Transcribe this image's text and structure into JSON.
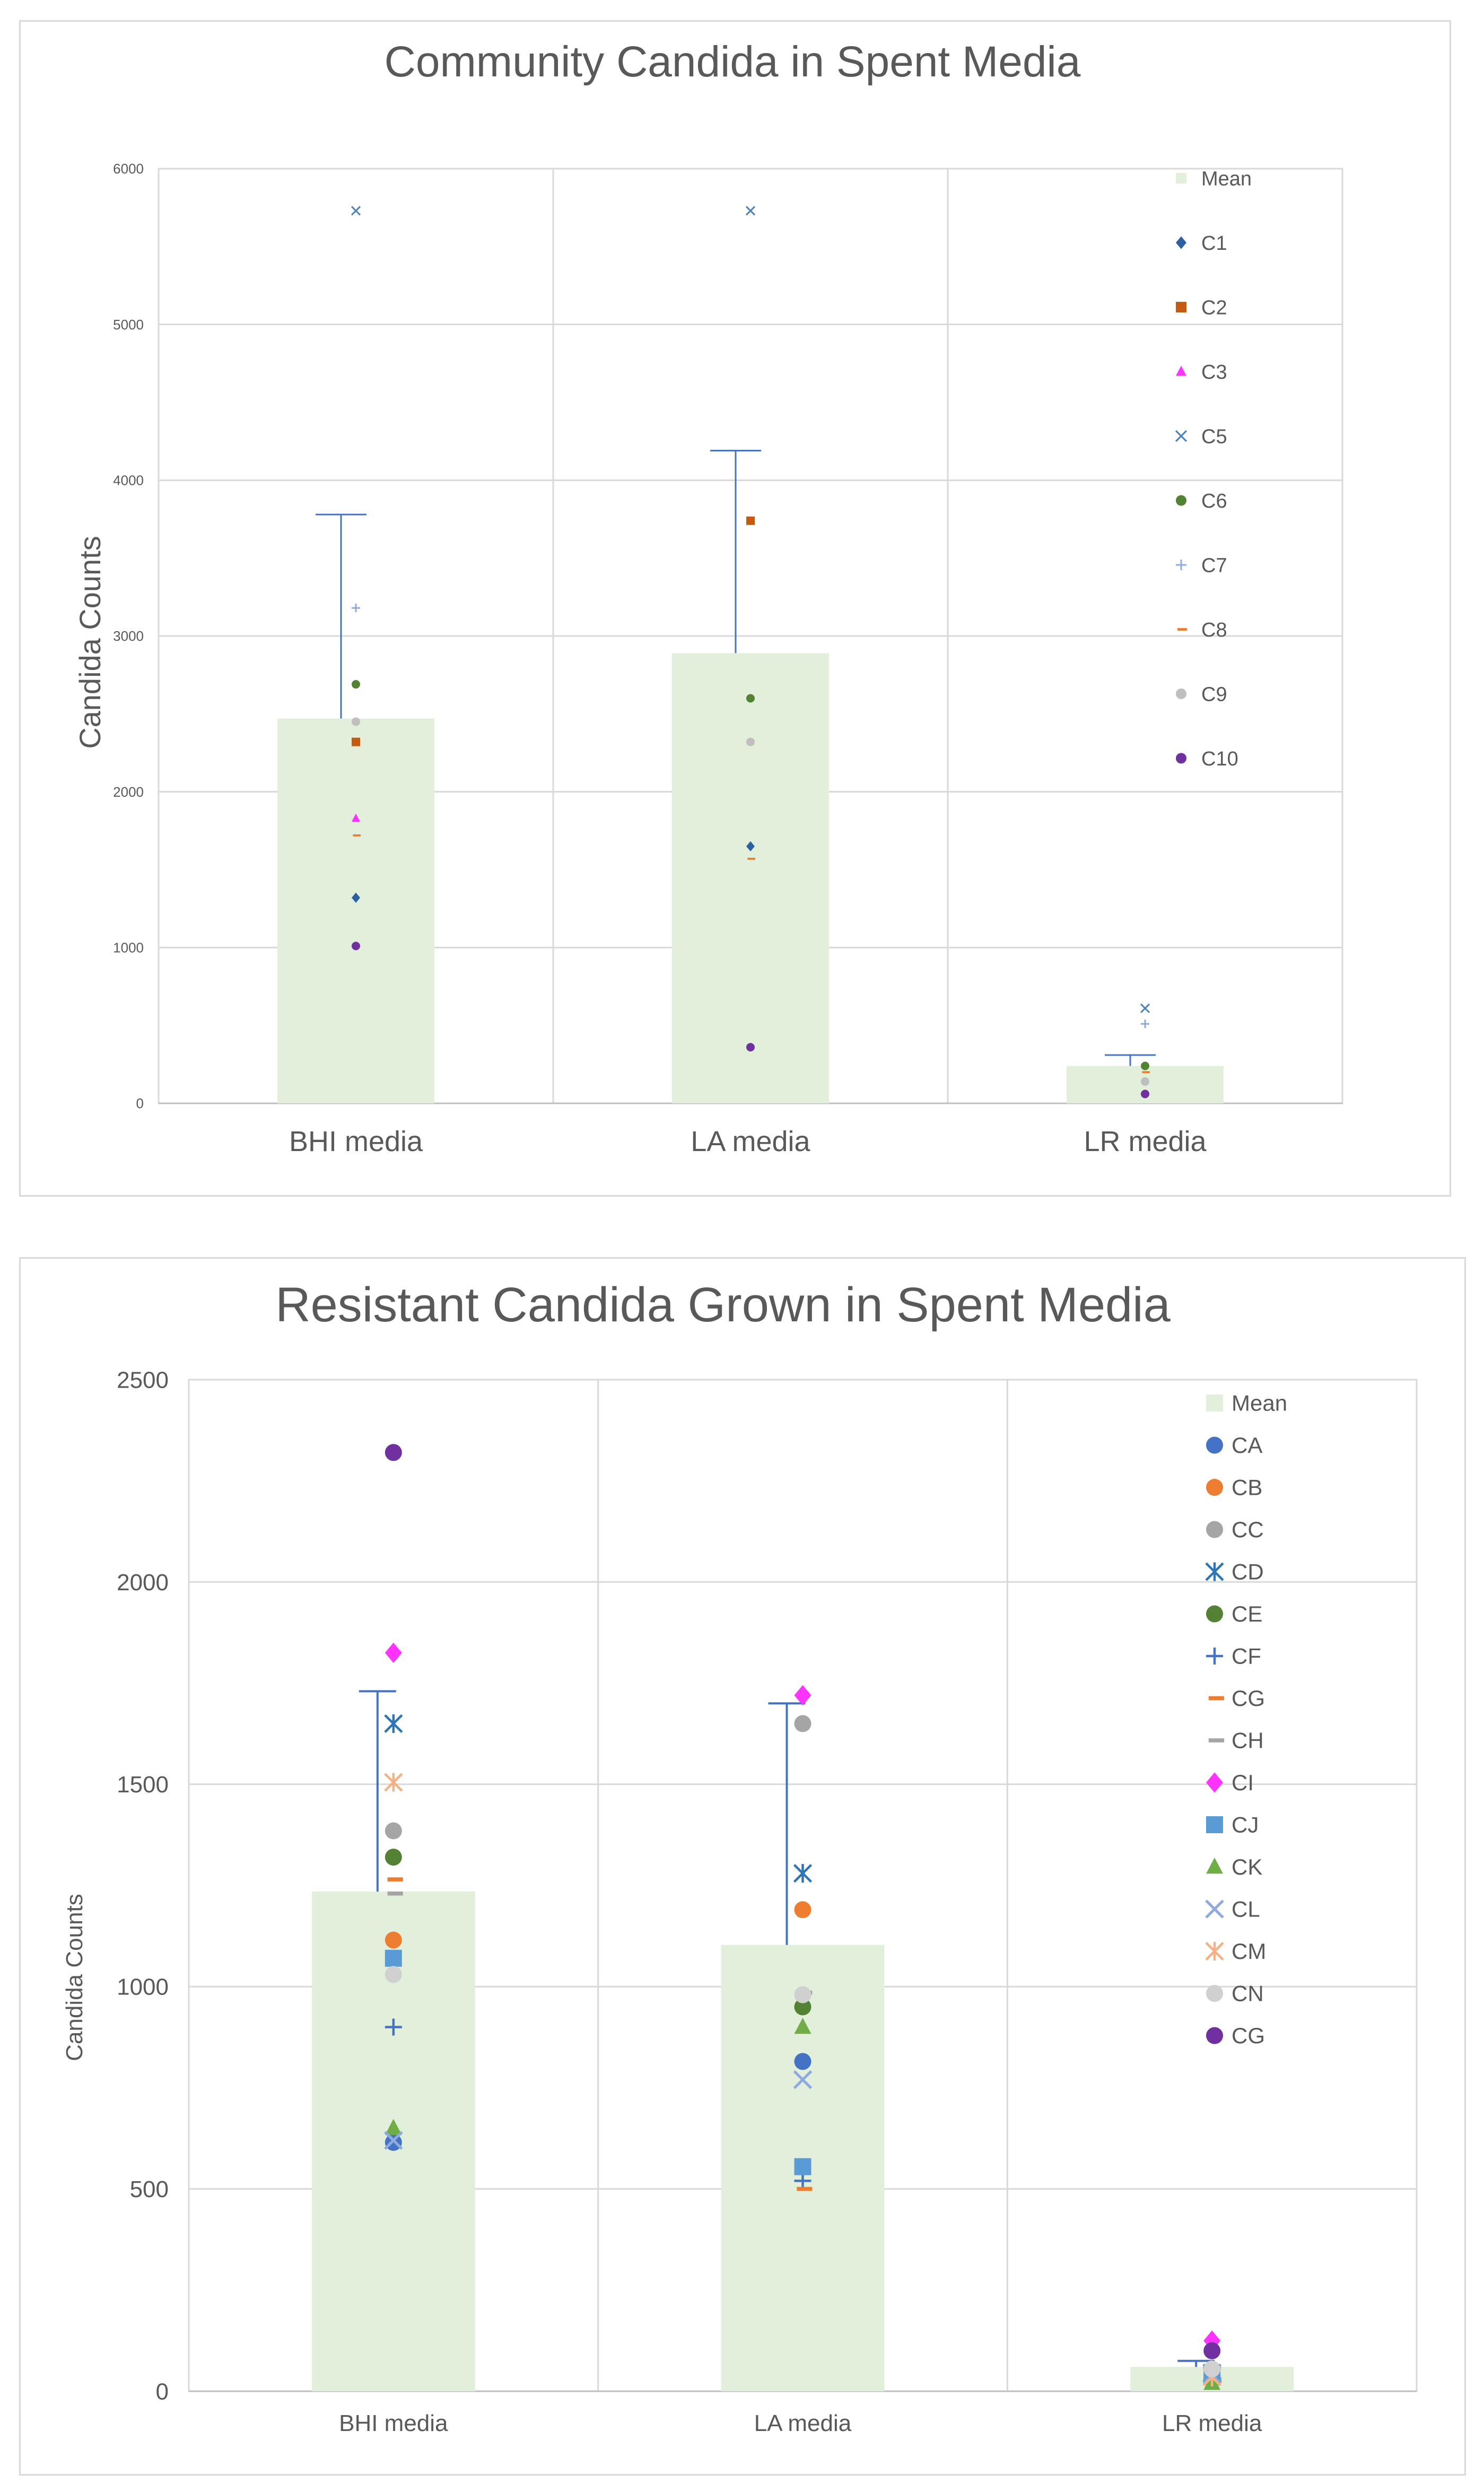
{
  "charts": [
    {
      "type": "bar",
      "title": "Community Candida in Spent Media",
      "ylabel": "Candida Counts",
      "xlabel": "",
      "categories": [
        "BHI media",
        "LA media",
        "LR media"
      ],
      "ylim": [
        0,
        6000
      ],
      "yticks": [
        "0",
        "1000",
        "2000",
        "3000",
        "4000",
        "5000",
        "6000"
      ],
      "grid": true,
      "legend_position": "top-right, inside plot",
      "mean": {
        "name": "Mean",
        "values": [
          2470,
          2890,
          240
        ],
        "error_upper": [
          3780,
          4190,
          310
        ],
        "color": "#e2efda"
      },
      "error_color": "#4472c4",
      "series": [
        {
          "name": "C1",
          "marker": "diamond",
          "color": "#2e5fa3",
          "values": [
            1320,
            1650,
            null
          ]
        },
        {
          "name": "C2",
          "marker": "square",
          "color": "#c55a11",
          "values": [
            2320,
            3740,
            null
          ]
        },
        {
          "name": "C3",
          "marker": "triangle",
          "color": "#ff33ff",
          "values": [
            1830,
            null,
            null
          ]
        },
        {
          "name": "C5",
          "marker": "x",
          "color": "#4f81bd",
          "values": [
            5730,
            5730,
            610
          ]
        },
        {
          "name": "C6",
          "marker": "circle",
          "color": "#548235",
          "values": [
            2690,
            2600,
            240
          ]
        },
        {
          "name": "C7",
          "marker": "plus",
          "color": "#8ea9db",
          "values": [
            3180,
            null,
            510
          ]
        },
        {
          "name": "C8",
          "marker": "dash",
          "color": "#ed7d31",
          "values": [
            1720,
            1570,
            200
          ]
        },
        {
          "name": "C9",
          "marker": "circle",
          "color": "#bfbfbf",
          "values": [
            2450,
            2320,
            140
          ]
        },
        {
          "name": "C10",
          "marker": "circle",
          "color": "#7030a0",
          "values": [
            1010,
            360,
            60
          ]
        }
      ]
    },
    {
      "type": "bar",
      "title": "Resistant Candida Grown in Spent Media",
      "ylabel": "Candida Counts",
      "xlabel": "",
      "categories": [
        "BHI media",
        "LA media",
        "LR media"
      ],
      "ylim": [
        0,
        2500
      ],
      "yticks": [
        "0",
        "500",
        "1000",
        "1500",
        "2000",
        "2500"
      ],
      "grid": true,
      "legend_position": "top-right, inside plot",
      "mean": {
        "name": "Mean",
        "values": [
          1235,
          1103,
          60
        ],
        "error_upper": [
          1730,
          1700,
          75
        ],
        "color": "#e2efda"
      },
      "error_color": "#4472c4",
      "series": [
        {
          "name": "CA",
          "marker": "circle",
          "color": "#4472c4",
          "values": [
            615,
            815,
            40
          ]
        },
        {
          "name": "CB",
          "marker": "circle",
          "color": "#ed7d31",
          "values": [
            1115,
            1190,
            50
          ]
        },
        {
          "name": "CC",
          "marker": "circle",
          "color": "#a5a5a5",
          "values": [
            1385,
            1650,
            45
          ]
        },
        {
          "name": "CD",
          "marker": "asterisk",
          "color": "#2e75b6",
          "values": [
            1650,
            1280,
            45
          ]
        },
        {
          "name": "CE",
          "marker": "circle",
          "color": "#548235",
          "values": [
            1320,
            950,
            30
          ]
        },
        {
          "name": "CF",
          "marker": "plus",
          "color": "#4472c4",
          "values": [
            900,
            520,
            30
          ]
        },
        {
          "name": "CG",
          "marker": "dash",
          "color": "#ed7d31",
          "values": [
            1265,
            500,
            25
          ]
        },
        {
          "name": "CH",
          "marker": "dash",
          "color": "#a5a5a5",
          "values": [
            1230,
            985,
            30
          ]
        },
        {
          "name": "CI",
          "marker": "diamond",
          "color": "#ff33ff",
          "values": [
            1825,
            1720,
            125
          ]
        },
        {
          "name": "CJ",
          "marker": "square",
          "color": "#5b9bd5",
          "values": [
            1070,
            555,
            45
          ]
        },
        {
          "name": "CK",
          "marker": "triangle",
          "color": "#70ad47",
          "values": [
            650,
            900,
            20
          ]
        },
        {
          "name": "CL",
          "marker": "x",
          "color": "#8faadc",
          "values": [
            620,
            770,
            40
          ]
        },
        {
          "name": "CM",
          "marker": "asterisk",
          "color": "#f4b183",
          "values": [
            1505,
            null,
            35
          ]
        },
        {
          "name": "CN",
          "marker": "circle",
          "color": "#d0d0d0",
          "values": [
            1030,
            980,
            55
          ]
        },
        {
          "name": "CG",
          "marker": "circle",
          "color": "#7030a0",
          "values": [
            2320,
            null,
            100
          ]
        }
      ]
    }
  ]
}
